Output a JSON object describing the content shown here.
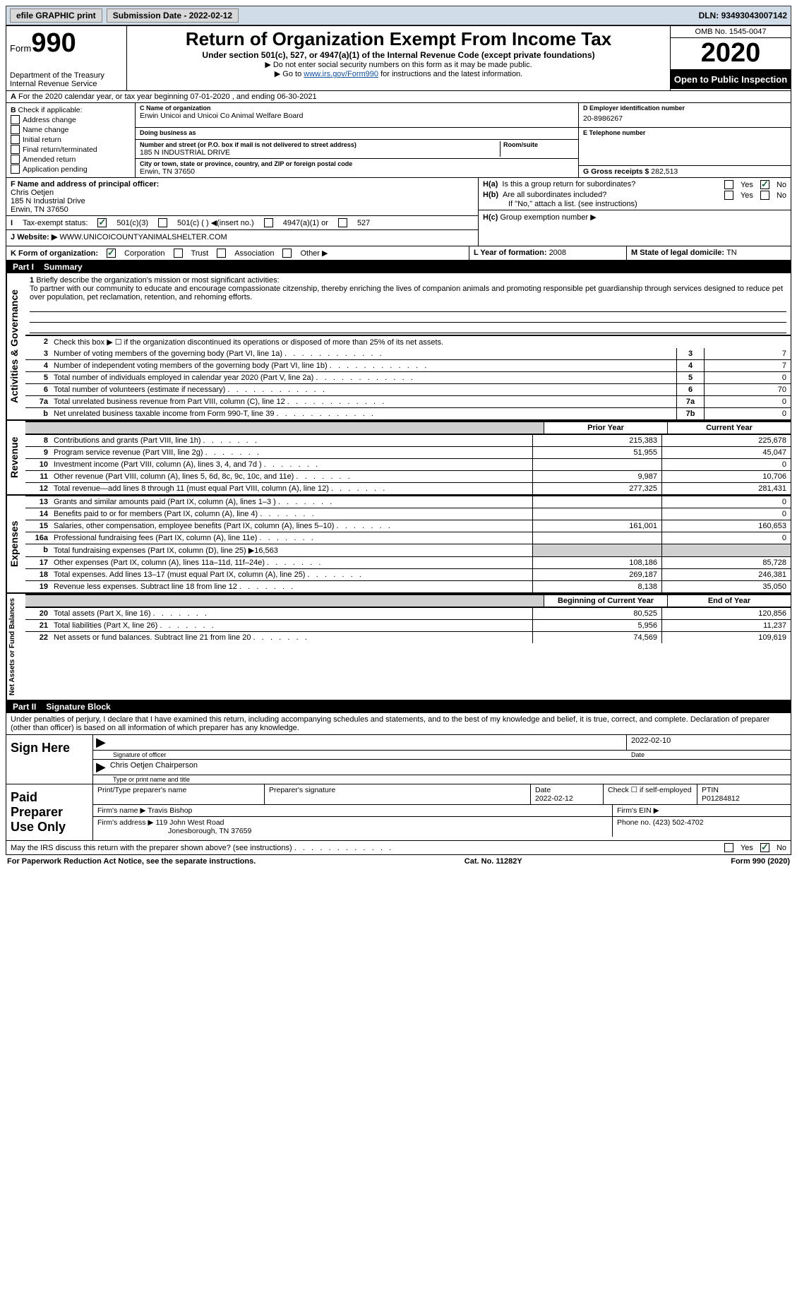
{
  "topbar": {
    "efile": "efile GRAPHIC print",
    "submission_label": "Submission Date - ",
    "submission_date": "2022-02-12",
    "dln_label": "DLN: ",
    "dln": "93493043007142"
  },
  "header": {
    "form_prefix": "Form",
    "form_number": "990",
    "dept1": "Department of the Treasury",
    "dept2": "Internal Revenue Service",
    "title": "Return of Organization Exempt From Income Tax",
    "sub": "Under section 501(c), 527, or 4947(a)(1) of the Internal Revenue Code (except private foundations)",
    "notice1": "Do not enter social security numbers on this form as it may be made public.",
    "notice2_pre": "Go to ",
    "notice2_link": "www.irs.gov/Form990",
    "notice2_post": " for instructions and the latest information.",
    "omb": "OMB No. 1545-0047",
    "year": "2020",
    "open_public": "Open to Public Inspection"
  },
  "row_a": {
    "text": "For the 2020 calendar year, or tax year beginning 07-01-2020    , and ending 06-30-2021"
  },
  "col_b": {
    "label": "Check if applicable:",
    "items": [
      "Address change",
      "Name change",
      "Initial return",
      "Final return/terminated",
      "Amended return",
      "Application pending"
    ]
  },
  "col_c": {
    "name_label": "C Name of organization",
    "name": "Erwin Unicoi and Unicoi Co Animal Welfare Board",
    "dba_label": "Doing business as",
    "dba": "",
    "addr_label": "Number and street (or P.O. box if mail is not delivered to street address)",
    "addr": "185 N INDUSTRIAL DRIVE",
    "room_label": "Room/suite",
    "city_label": "City or town, state or province, country, and ZIP or foreign postal code",
    "city": "Erwin, TN  37650"
  },
  "col_d": {
    "ein_label": "D Employer identification number",
    "ein": "20-8986267",
    "tel_label": "E Telephone number",
    "tel": "",
    "gross_label": "G Gross receipts $ ",
    "gross": "282,513"
  },
  "fgi": {
    "f_label": "F  Name and address of principal officer:",
    "f_name": "Chris Oetjen",
    "f_addr1": "185 N Industrial Drive",
    "f_addr2": "Erwin, TN  37650",
    "i_label": "Tax-exempt status:",
    "i_501c3": "501(c)(3)",
    "i_501c": "501(c) (  ) ◀(insert no.)",
    "i_4947": "4947(a)(1) or",
    "i_527": "527",
    "j_label": "Website: ▶",
    "j_value": "WWW.UNICOICOUNTYANIMALSHELTER.COM",
    "k_label": "K Form of organization:",
    "k_corp": "Corporation",
    "k_trust": "Trust",
    "k_assoc": "Association",
    "k_other": "Other ▶",
    "ha_label": "H(a)",
    "ha_text1": "Is this a group return for subordinates?",
    "hb_label": "H(b)",
    "hb_text": "Are all subordinates included?",
    "h_note": "If \"No,\" attach a list. (see instructions)",
    "hc_label": "H(c)",
    "hc_text": "Group exemption number ▶",
    "l_label": "L Year of formation: ",
    "l_value": "2008",
    "m_label": "M State of legal domicile: ",
    "m_value": "TN",
    "yes": "Yes",
    "no": "No"
  },
  "part1": {
    "tag": "Part I",
    "title": "Summary",
    "q1_label": "1",
    "q1_text": "Briefly describe the organization's mission or most significant activities:",
    "mission": "To partner with our community to educate and encourage compassionate citzenship, thereby enriching the lives of companion animals and promoting responsible pet guardianship through services designed to reduce pet over population, pet reclamation, retention, and rehoming efforts.",
    "q2_text": "Check this box ▶ ☐ if the organization discontinued its operations or disposed of more than 25% of its net assets.",
    "rows_gov": [
      {
        "n": "3",
        "t": "Number of voting members of the governing body (Part VI, line 1a)",
        "box": "3",
        "v": "7"
      },
      {
        "n": "4",
        "t": "Number of independent voting members of the governing body (Part VI, line 1b)",
        "box": "4",
        "v": "7"
      },
      {
        "n": "5",
        "t": "Total number of individuals employed in calendar year 2020 (Part V, line 2a)",
        "box": "5",
        "v": "0"
      },
      {
        "n": "6",
        "t": "Total number of volunteers (estimate if necessary)",
        "box": "6",
        "v": "70"
      },
      {
        "n": "7a",
        "t": "Total unrelated business revenue from Part VIII, column (C), line 12",
        "box": "7a",
        "v": "0"
      },
      {
        "n": "b",
        "t": "Net unrelated business taxable income from Form 990-T, line 39",
        "box": "7b",
        "v": "0"
      }
    ],
    "head_prior": "Prior Year",
    "head_current": "Current Year",
    "revenue_rows": [
      {
        "n": "8",
        "t": "Contributions and grants (Part VIII, line 1h)",
        "p": "215,383",
        "c": "225,678"
      },
      {
        "n": "9",
        "t": "Program service revenue (Part VIII, line 2g)",
        "p": "51,955",
        "c": "45,047"
      },
      {
        "n": "10",
        "t": "Investment income (Part VIII, column (A), lines 3, 4, and 7d )",
        "p": "",
        "c": "0"
      },
      {
        "n": "11",
        "t": "Other revenue (Part VIII, column (A), lines 5, 6d, 8c, 9c, 10c, and 11e)",
        "p": "9,987",
        "c": "10,706"
      },
      {
        "n": "12",
        "t": "Total revenue—add lines 8 through 11 (must equal Part VIII, column (A), line 12)",
        "p": "277,325",
        "c": "281,431"
      }
    ],
    "expense_rows": [
      {
        "n": "13",
        "t": "Grants and similar amounts paid (Part IX, column (A), lines 1–3 )",
        "p": "",
        "c": "0"
      },
      {
        "n": "14",
        "t": "Benefits paid to or for members (Part IX, column (A), line 4)",
        "p": "",
        "c": "0"
      },
      {
        "n": "15",
        "t": "Salaries, other compensation, employee benefits (Part IX, column (A), lines 5–10)",
        "p": "161,001",
        "c": "160,653"
      },
      {
        "n": "16a",
        "t": "Professional fundraising fees (Part IX, column (A), line 11e)",
        "p": "",
        "c": "0"
      },
      {
        "n": "b",
        "t": "Total fundraising expenses (Part IX, column (D), line 25) ▶16,563",
        "p": null,
        "c": null
      },
      {
        "n": "17",
        "t": "Other expenses (Part IX, column (A), lines 11a–11d, 11f–24e)",
        "p": "108,186",
        "c": "85,728"
      },
      {
        "n": "18",
        "t": "Total expenses. Add lines 13–17 (must equal Part IX, column (A), line 25)",
        "p": "269,187",
        "c": "246,381"
      },
      {
        "n": "19",
        "t": "Revenue less expenses. Subtract line 18 from line 12",
        "p": "8,138",
        "c": "35,050"
      }
    ],
    "net_head_b": "Beginning of Current Year",
    "net_head_e": "End of Year",
    "net_rows": [
      {
        "n": "20",
        "t": "Total assets (Part X, line 16)",
        "p": "80,525",
        "c": "120,856"
      },
      {
        "n": "21",
        "t": "Total liabilities (Part X, line 26)",
        "p": "5,956",
        "c": "11,237"
      },
      {
        "n": "22",
        "t": "Net assets or fund balances. Subtract line 21 from line 20",
        "p": "74,569",
        "c": "109,619"
      }
    ],
    "vtext_gov": "Activities & Governance",
    "vtext_rev": "Revenue",
    "vtext_exp": "Expenses",
    "vtext_net": "Net Assets or Fund Balances"
  },
  "part2": {
    "tag": "Part II",
    "title": "Signature Block",
    "penalties": "Under penalties of perjury, I declare that I have examined this return, including accompanying schedules and statements, and to the best of my knowledge and belief, it is true, correct, and complete. Declaration of preparer (other than officer) is based on all information of which preparer has any knowledge.",
    "sign_here": "Sign Here",
    "sig_officer": "Signature of officer",
    "date_label": "Date",
    "sig_date": "2022-02-10",
    "typed": "Chris Oetjen  Chairperson",
    "typed_label": "Type or print name and title",
    "paid_label": "Paid Preparer Use Only",
    "prep_name_label": "Print/Type preparer's name",
    "prep_name": "",
    "prep_sig_label": "Preparer's signature",
    "prep_date_label": "Date",
    "prep_date": "2022-02-12",
    "check_self": "Check ☐ if self-employed",
    "ptin_label": "PTIN",
    "ptin": "P01284812",
    "firm_name_label": "Firm's name    ▶",
    "firm_name": "Travis Bishop",
    "firm_ein_label": "Firm's EIN ▶",
    "firm_addr_label": "Firm's address ▶",
    "firm_addr1": "119 John West Road",
    "firm_addr2": "Jonesborough, TN  37659",
    "phone_label": "Phone no. ",
    "phone": "(423) 502-4702",
    "may_irs": "May the IRS discuss this return with the preparer shown above? (see instructions)"
  },
  "footer": {
    "left": "For Paperwork Reduction Act Notice, see the separate instructions.",
    "center": "Cat. No. 11282Y",
    "right": "Form 990 (2020)"
  }
}
